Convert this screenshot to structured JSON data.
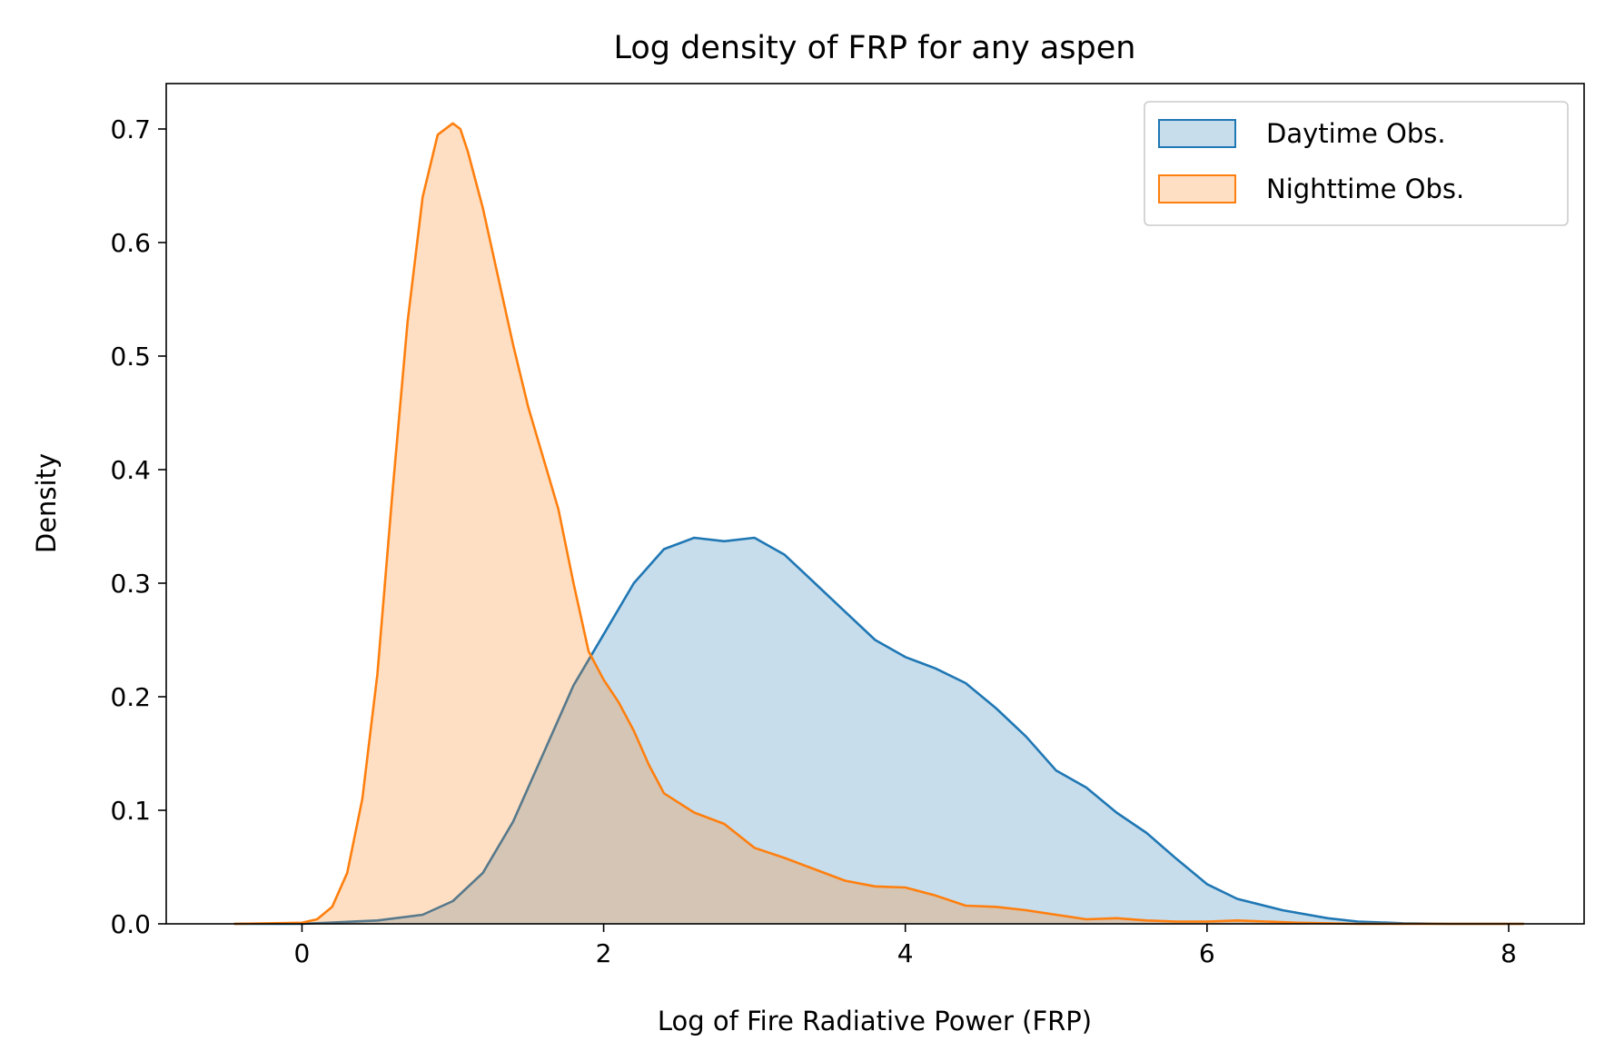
{
  "chart_data": {
    "type": "area",
    "title": "Log density of FRP for any aspen",
    "xlabel": "Log of Fire Radiative Power (FRP)",
    "ylabel": "Density",
    "xlim": [
      -0.9,
      8.5
    ],
    "ylim": [
      0,
      0.74
    ],
    "xticks": [
      0,
      2,
      4,
      6,
      8
    ],
    "yticks": [
      0.0,
      0.1,
      0.2,
      0.3,
      0.4,
      0.5,
      0.6,
      0.7
    ],
    "xtick_labels": [
      "0",
      "2",
      "4",
      "6",
      "8"
    ],
    "ytick_labels": [
      "0.0",
      "0.1",
      "0.2",
      "0.3",
      "0.4",
      "0.5",
      "0.6",
      "0.7"
    ],
    "grid": false,
    "legend_position": "top-right",
    "series": [
      {
        "name": "Daytime Obs.",
        "color": "#1f77b4",
        "x": [
          -0.45,
          0.0,
          0.5,
          0.8,
          1.0,
          1.2,
          1.4,
          1.6,
          1.8,
          2.0,
          2.2,
          2.4,
          2.6,
          2.8,
          3.0,
          3.2,
          3.4,
          3.6,
          3.8,
          4.0,
          4.2,
          4.4,
          4.6,
          4.8,
          5.0,
          5.2,
          5.4,
          5.6,
          5.8,
          6.0,
          6.2,
          6.5,
          6.8,
          7.0,
          7.3,
          7.6,
          8.0,
          8.1
        ],
        "y": [
          0.0,
          0.0,
          0.003,
          0.008,
          0.02,
          0.045,
          0.09,
          0.15,
          0.21,
          0.255,
          0.3,
          0.33,
          0.34,
          0.337,
          0.34,
          0.325,
          0.3,
          0.275,
          0.25,
          0.235,
          0.225,
          0.212,
          0.19,
          0.165,
          0.135,
          0.12,
          0.098,
          0.08,
          0.057,
          0.035,
          0.022,
          0.012,
          0.005,
          0.002,
          0.0005,
          0.0,
          0.0,
          0.0
        ]
      },
      {
        "name": "Nighttime Obs.",
        "color": "#ff7f0e",
        "x": [
          -0.45,
          0.0,
          0.1,
          0.2,
          0.3,
          0.4,
          0.5,
          0.6,
          0.7,
          0.8,
          0.9,
          1.0,
          1.05,
          1.1,
          1.2,
          1.3,
          1.4,
          1.5,
          1.6,
          1.7,
          1.8,
          1.9,
          2.0,
          2.1,
          2.2,
          2.3,
          2.4,
          2.6,
          2.8,
          3.0,
          3.2,
          3.4,
          3.6,
          3.8,
          4.0,
          4.2,
          4.4,
          4.6,
          4.8,
          5.0,
          5.2,
          5.4,
          5.6,
          5.8,
          6.0,
          6.2,
          6.4,
          6.6,
          6.8,
          7.0,
          8.1
        ],
        "y": [
          0.0,
          0.001,
          0.004,
          0.015,
          0.045,
          0.11,
          0.22,
          0.38,
          0.53,
          0.64,
          0.695,
          0.705,
          0.7,
          0.68,
          0.63,
          0.57,
          0.51,
          0.455,
          0.41,
          0.365,
          0.3,
          0.24,
          0.215,
          0.195,
          0.17,
          0.14,
          0.115,
          0.098,
          0.088,
          0.067,
          0.058,
          0.048,
          0.038,
          0.033,
          0.032,
          0.025,
          0.016,
          0.015,
          0.012,
          0.008,
          0.004,
          0.005,
          0.003,
          0.002,
          0.002,
          0.003,
          0.002,
          0.001,
          0.0005,
          0.0,
          0.0
        ]
      }
    ]
  }
}
